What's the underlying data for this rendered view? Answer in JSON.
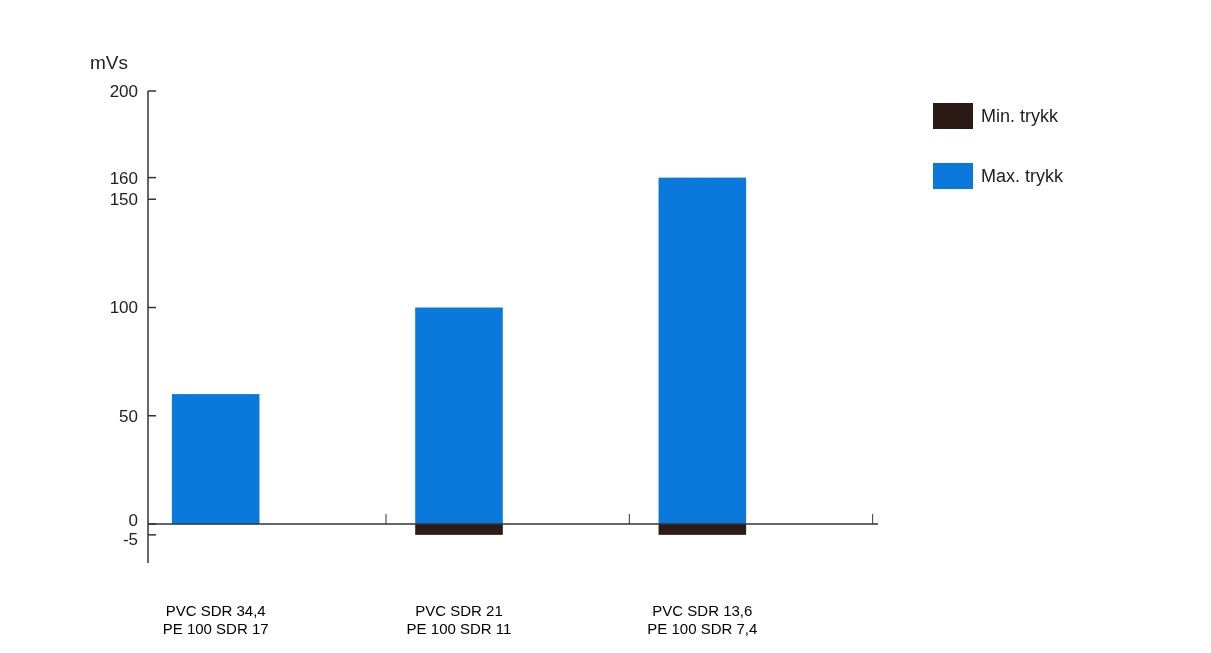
{
  "chart_data": {
    "type": "bar",
    "ylabel": "mVs",
    "categories": [
      "PVC SDR 34,4\nPE 100 SDR 17",
      "PVC SDR 21\nPE 100 SDR 11",
      "PVC SDR 13,6\nPE 100 SDR 7,4"
    ],
    "series": [
      {
        "name": "Min. trykk",
        "color": "#2b1a15",
        "values": [
          null,
          -5,
          -5
        ]
      },
      {
        "name": "Max. trykk",
        "color": "#0b78dc",
        "values": [
          60,
          100,
          160
        ]
      }
    ],
    "stacked": true,
    "ylim": [
      -18,
      200
    ],
    "yticks": [
      -5,
      0,
      50,
      100,
      150,
      160,
      200
    ],
    "legend": "top right"
  }
}
